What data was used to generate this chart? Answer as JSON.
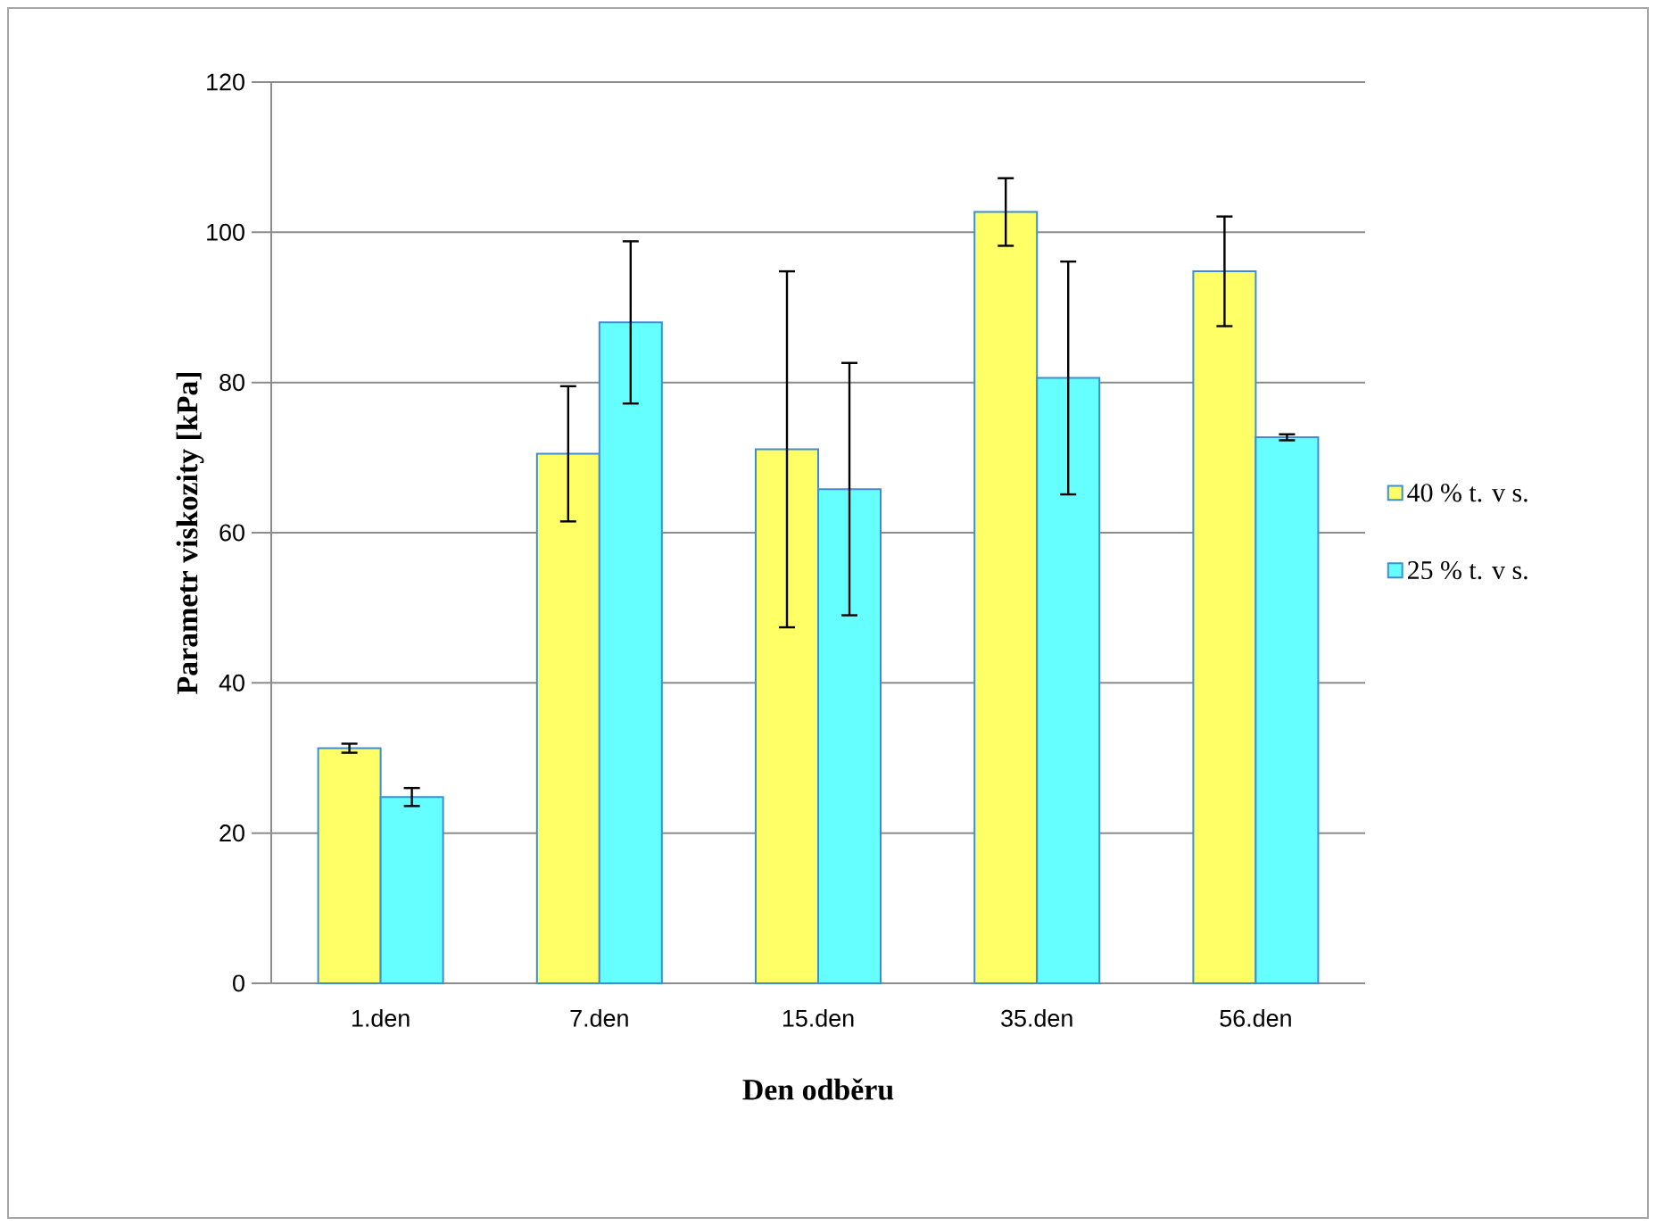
{
  "chart_data": {
    "type": "bar",
    "xlabel": "Den odběru",
    "ylabel": "Parametr viskozity [kPa]",
    "categories": [
      "1.den",
      "7.den",
      "15.den",
      "35.den",
      "56.den"
    ],
    "series": [
      {
        "name": "40 % t. v s.",
        "color": "#ffff66",
        "values": [
          31.3,
          70.5,
          71.1,
          102.7,
          94.8
        ],
        "errors": [
          0.6,
          9.0,
          23.7,
          4.5,
          7.3
        ]
      },
      {
        "name": "25 % t. v s.",
        "color": "#66ffff",
        "values": [
          24.8,
          88.0,
          65.8,
          80.6,
          72.7
        ],
        "errors": [
          1.2,
          10.8,
          16.8,
          15.5,
          0.4
        ]
      }
    ],
    "ylim": [
      0,
      120
    ],
    "yticks": [
      0,
      20,
      40,
      60,
      80,
      100,
      120
    ],
    "grid": "y",
    "legend": "right"
  }
}
